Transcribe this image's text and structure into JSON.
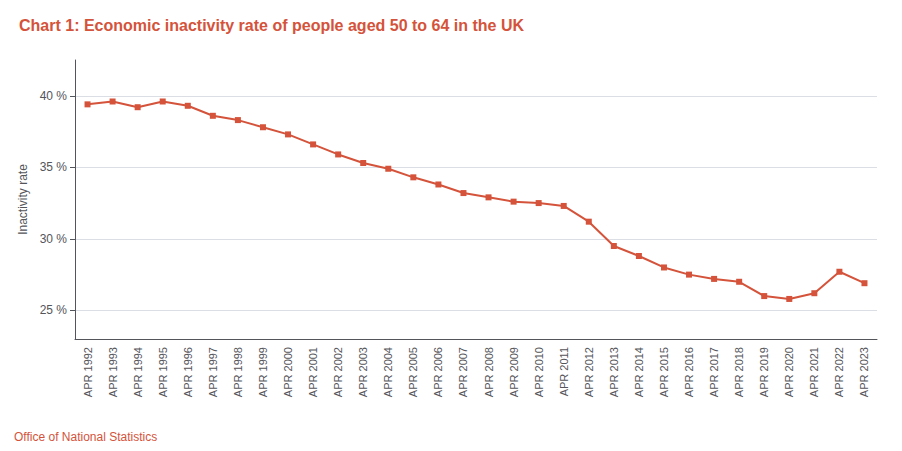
{
  "chart_data": {
    "type": "line",
    "title": "Chart 1: Economic inactivity rate of people aged 50 to 64 in the UK",
    "ylabel": "Inactivity rate",
    "source": "Office of National Statistics",
    "categories": [
      "APR 1992",
      "APR 1993",
      "APR 1994",
      "APR 1995",
      "APR 1996",
      "APR 1997",
      "APR 1998",
      "APR 1999",
      "APR 2000",
      "APR 2001",
      "APR 2002",
      "APR 2003",
      "APR 2004",
      "APR 2005",
      "APR 2006",
      "APR 2007",
      "APR 2008",
      "APR 2009",
      "APR 2010",
      "APR 2011",
      "APR 2012",
      "APR 2013",
      "APR 2014",
      "APR 2015",
      "APR 2016",
      "APR 2017",
      "APR 2018",
      "APR 2019",
      "APR 2020",
      "APR 2021",
      "APR 2022",
      "APR 2023"
    ],
    "values": [
      39.4,
      39.6,
      39.2,
      39.6,
      39.3,
      38.6,
      38.3,
      37.8,
      37.3,
      36.6,
      35.9,
      35.3,
      34.9,
      34.3,
      33.8,
      33.2,
      32.9,
      32.6,
      32.5,
      32.3,
      31.2,
      29.5,
      28.8,
      28.0,
      27.5,
      27.2,
      27.0,
      26.0,
      25.8,
      26.2,
      27.7,
      26.9
    ],
    "color": "#d4533a",
    "marker": "square",
    "ylim": [
      23.0,
      42.5
    ],
    "yticks": [
      {
        "value": 25,
        "label": "25 %"
      },
      {
        "value": 30,
        "label": "30 %"
      },
      {
        "value": 35,
        "label": "35 %"
      },
      {
        "value": 40,
        "label": "40 %"
      }
    ],
    "grid": true
  }
}
